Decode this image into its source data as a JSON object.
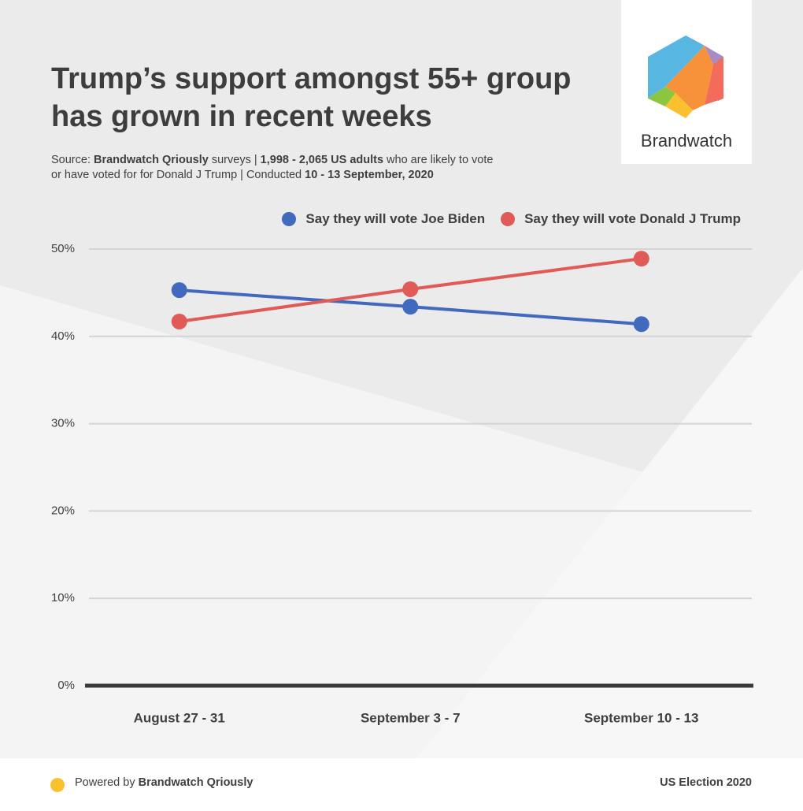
{
  "chart_data": {
    "type": "line",
    "title": "Trump’s support amongst 55+ group has grown in recent weeks",
    "subtitle": [
      [
        {
          "text": "Source: ",
          "bold": false
        },
        {
          "text": "Brandwatch Qriously",
          "bold": true
        },
        {
          "text": " surveys | ",
          "bold": false
        },
        {
          "text": "1,998 - 2,065 US adults",
          "bold": true
        },
        {
          "text": " who are likely to vote",
          "bold": false
        }
      ],
      [
        {
          "text": "or have voted for for Donald J Trump | Conducted ",
          "bold": false
        },
        {
          "text": "10 - 13 September, 2020",
          "bold": true
        }
      ]
    ],
    "categories": [
      "August 27 - 31",
      "September 3 - 7",
      "September 10 - 13"
    ],
    "series": [
      {
        "name": "Say they will vote Joe Biden",
        "color": "#4169bd",
        "values": [
          45.3,
          43.4,
          41.4
        ]
      },
      {
        "name": "Say they will vote Donald J Trump",
        "color": "#e05a57",
        "values": [
          41.7,
          45.4,
          48.9
        ]
      }
    ],
    "ylim": [
      0,
      50
    ],
    "yticks": [
      {
        "value": 0,
        "label": "0%"
      },
      {
        "value": 10,
        "label": "10%"
      },
      {
        "value": 20,
        "label": "20%"
      },
      {
        "value": 30,
        "label": "30%"
      },
      {
        "value": 40,
        "label": "40%"
      },
      {
        "value": 50,
        "label": "50%"
      }
    ],
    "grid": true,
    "logo": "Brandwatch",
    "footer_left": [
      {
        "text": "Powered by ",
        "bold": false
      },
      {
        "text": "Brandwatch Qriously",
        "bold": true
      }
    ],
    "footer_right": "US Election 2020"
  }
}
